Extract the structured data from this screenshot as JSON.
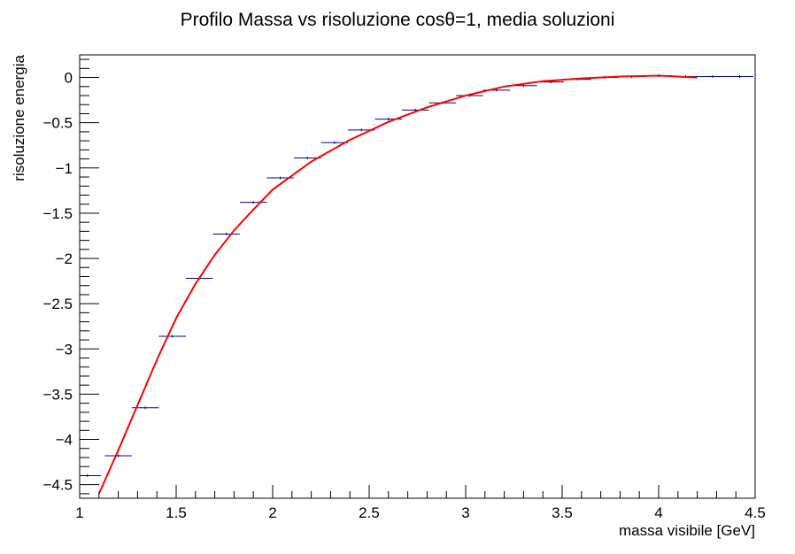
{
  "chart_data": {
    "type": "scatter",
    "title": "Profilo Massa vs risoluzione cosθ=1, media soluzioni",
    "xlabel": "massa visibile [GeV]",
    "ylabel": "risoluzione energia",
    "xlim": [
      1,
      4.5
    ],
    "ylim": [
      -4.65,
      0.25
    ],
    "x_ticks": [
      1,
      1.5,
      2,
      2.5,
      3,
      3.5,
      4,
      4.5
    ],
    "x_tick_labels": [
      "1",
      "1.5",
      "2",
      "2.5",
      "3",
      "3.5",
      "4",
      "4.5"
    ],
    "y_ticks": [
      0,
      -0.5,
      -1,
      -1.5,
      -2,
      -2.5,
      -3,
      -3.5,
      -4,
      -4.5
    ],
    "y_tick_labels": [
      "0",
      "−0.5",
      "−1",
      "−1.5",
      "−2",
      "−2.5",
      "−3",
      "−3.5",
      "−4",
      "−4.5"
    ],
    "grid": false,
    "legend": "none",
    "bin_width": 0.14,
    "series": [
      {
        "type": "profile",
        "color": "#000099",
        "x": [
          1.04,
          1.2,
          1.34,
          1.48,
          1.62,
          1.76,
          1.9,
          2.04,
          2.18,
          2.32,
          2.46,
          2.6,
          2.74,
          2.88,
          3.02,
          3.16,
          3.3,
          3.44,
          3.58,
          3.72,
          3.86,
          4.0,
          4.14,
          4.28,
          4.42
        ],
        "y": [
          -4.4,
          -4.18,
          -3.65,
          -2.86,
          -2.22,
          -1.73,
          -1.38,
          -1.11,
          -0.89,
          -0.72,
          -0.58,
          -0.46,
          -0.36,
          -0.28,
          -0.2,
          -0.14,
          -0.09,
          -0.05,
          -0.02,
          0.0,
          0.01,
          0.02,
          0.01,
          0.01,
          0.01
        ]
      },
      {
        "type": "fit",
        "color": "#ff0000",
        "x": [
          1.1,
          1.2,
          1.3,
          1.4,
          1.5,
          1.6,
          1.7,
          1.8,
          1.9,
          2.0,
          2.2,
          2.4,
          2.6,
          2.8,
          3.0,
          3.2,
          3.4,
          3.6,
          3.8,
          4.0,
          4.1,
          4.2
        ],
        "y": [
          -4.6,
          -4.12,
          -3.62,
          -3.12,
          -2.66,
          -2.28,
          -1.96,
          -1.69,
          -1.46,
          -1.24,
          -0.93,
          -0.69,
          -0.49,
          -0.33,
          -0.2,
          -0.1,
          -0.04,
          -0.01,
          0.01,
          0.02,
          0.01,
          0.0
        ]
      }
    ]
  }
}
